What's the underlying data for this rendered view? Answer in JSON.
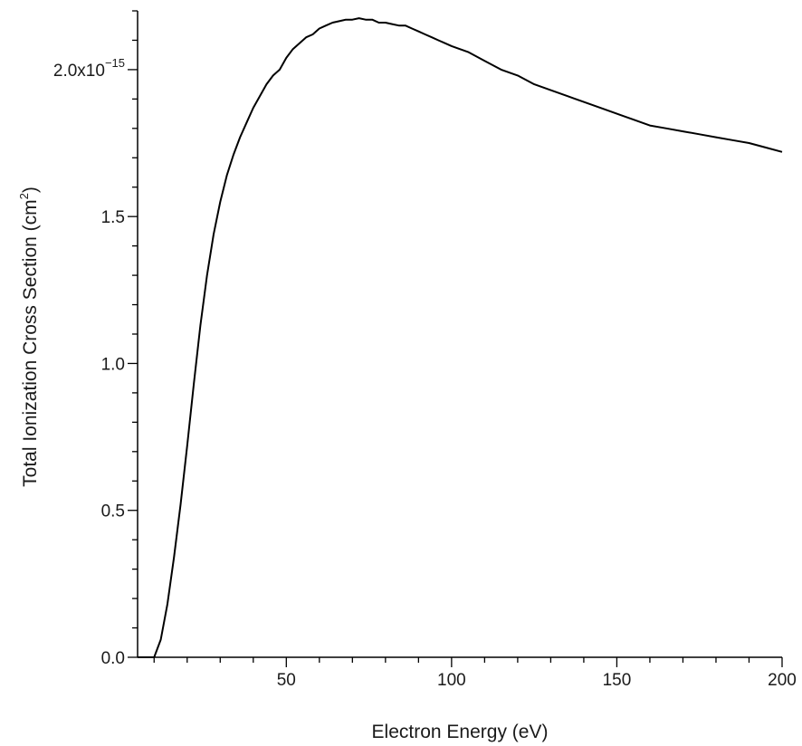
{
  "chart_data": {
    "type": "line",
    "title": "",
    "xlabel": "Electron Energy (eV)",
    "ylabel_main": "Total Ionization Cross Section (cm",
    "ylabel_sup": "2",
    "ylabel_close": ")",
    "xlim": [
      5,
      200
    ],
    "ylim": [
      0,
      2.2e-15
    ],
    "x_ticks": [
      50,
      100,
      150,
      200
    ],
    "x_tick_labels": [
      "50",
      "100",
      "150",
      "200"
    ],
    "y_ticks": [
      0.0,
      5e-16,
      1e-15,
      1.5e-15,
      2e-15
    ],
    "y_tick_labels": [
      "0.0",
      "0.5",
      "1.0",
      "1.5",
      "2.0x10"
    ],
    "y_tick_exponent": "−15",
    "grid": false,
    "legend": "none",
    "line_color": "#000000",
    "series": [
      {
        "x": [
          5,
          10,
          12,
          14,
          16,
          18,
          20,
          22,
          24,
          26,
          28,
          30,
          32,
          34,
          36,
          38,
          40,
          42,
          44,
          46,
          48,
          50,
          52,
          54,
          56,
          58,
          60,
          62,
          64,
          66,
          68,
          70,
          72,
          74,
          76,
          78,
          80,
          82,
          84,
          86,
          88,
          90,
          92,
          94,
          96,
          98,
          100,
          105,
          110,
          115,
          120,
          125,
          130,
          135,
          140,
          145,
          150,
          155,
          160,
          165,
          170,
          175,
          180,
          185,
          190,
          195,
          200
        ],
        "y": [
          0.0,
          0.0,
          6e-17,
          1.8e-16,
          3.4e-16,
          5.2e-16,
          7.2e-16,
          9.3e-16,
          1.13e-15,
          1.3e-15,
          1.44e-15,
          1.55e-15,
          1.64e-15,
          1.71e-15,
          1.77e-15,
          1.82e-15,
          1.87e-15,
          1.91e-15,
          1.95e-15,
          1.98e-15,
          2e-15,
          2.04e-15,
          2.07e-15,
          2.09e-15,
          2.11e-15,
          2.12e-15,
          2.14e-15,
          2.15e-15,
          2.16e-15,
          2.165e-15,
          2.17e-15,
          2.17e-15,
          2.175e-15,
          2.17e-15,
          2.17e-15,
          2.16e-15,
          2.16e-15,
          2.155e-15,
          2.15e-15,
          2.15e-15,
          2.14e-15,
          2.13e-15,
          2.12e-15,
          2.11e-15,
          2.1e-15,
          2.09e-15,
          2.08e-15,
          2.06e-15,
          2.03e-15,
          2e-15,
          1.98e-15,
          1.95e-15,
          1.93e-15,
          1.91e-15,
          1.89e-15,
          1.87e-15,
          1.85e-15,
          1.83e-15,
          1.81e-15,
          1.8e-15,
          1.79e-15,
          1.78e-15,
          1.77e-15,
          1.76e-15,
          1.75e-15,
          1.735e-15,
          1.72e-15
        ]
      }
    ]
  }
}
